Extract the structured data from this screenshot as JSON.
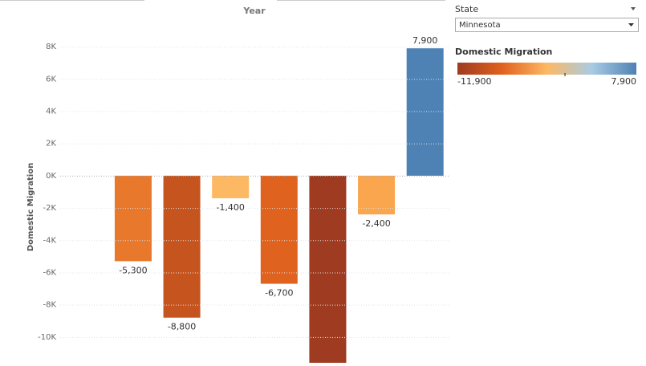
{
  "chart_data": {
    "type": "bar",
    "header": "Year",
    "y_label": "Domestic Migration",
    "categories": [
      null,
      null,
      null,
      null,
      null,
      null,
      null,
      null
    ],
    "values": [
      null,
      -5300,
      -8800,
      -1400,
      -6700,
      -11900,
      -2400,
      7900
    ],
    "value_labels": [
      null,
      "-5,300",
      "-8,800",
      "-1,400",
      "-6,700",
      null,
      "-2,400",
      "7,900"
    ],
    "colors": [
      null,
      "#e8782c",
      "#c6541f",
      "#fdb863",
      "#e0621f",
      "#9e3b20",
      "#f9a64e",
      "#4e81b4"
    ],
    "ylim": [
      -11600,
      9900
    ],
    "yticks": [
      {
        "value": 8000,
        "label": "8K"
      },
      {
        "value": 6000,
        "label": "6K"
      },
      {
        "value": 4000,
        "label": "4K"
      },
      {
        "value": 2000,
        "label": "2K"
      },
      {
        "value": 0,
        "label": "0K"
      },
      {
        "value": -2000,
        "label": "-2K"
      },
      {
        "value": -4000,
        "label": "-4K"
      },
      {
        "value": -6000,
        "label": "-6K"
      },
      {
        "value": -8000,
        "label": "-8K"
      },
      {
        "value": -10000,
        "label": "-10K"
      }
    ],
    "grid": true,
    "filter": {
      "title": "State",
      "selected": "Minnesota"
    },
    "color_legend": {
      "title": "Domestic Migration",
      "min": {
        "value": -11900,
        "label": "-11,900"
      },
      "max": {
        "value": 7900,
        "label": "7,900"
      },
      "colors": [
        "#9e3b20",
        "#e0621f",
        "#fdb863",
        "#a9cbe3",
        "#4e81b4"
      ]
    }
  }
}
